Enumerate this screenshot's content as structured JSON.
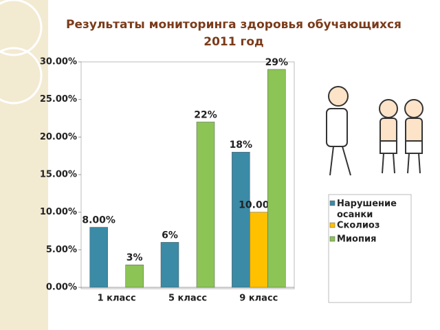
{
  "chart_data": {
    "type": "bar",
    "title": "Результаты мониторинга здоровья обучающихся",
    "subtitle": "2011 год",
    "categories": [
      "1 класс",
      "5 класс",
      "9 класс"
    ],
    "series": [
      {
        "name": "Нарушение осанки",
        "color": "#3b8aa6",
        "values": [
          8,
          6,
          18
        ],
        "value_labels": [
          "8.00%",
          "6%",
          "18%"
        ]
      },
      {
        "name": "Сколиоз",
        "color": "#ffc000",
        "values": [
          0,
          0,
          10
        ],
        "value_labels": [
          null,
          null,
          "10.00%"
        ]
      },
      {
        "name": "Миопия",
        "color": "#8cc456",
        "values": [
          3,
          22,
          29
        ],
        "value_labels": [
          "3%",
          "22%",
          "29%"
        ]
      }
    ],
    "ylim": [
      0,
      30
    ],
    "yticks": [
      {
        "value": 0,
        "label": "0.00%"
      },
      {
        "value": 5,
        "label": "5.00%"
      },
      {
        "value": 10,
        "label": "10.00%"
      },
      {
        "value": 15,
        "label": "15.00%"
      },
      {
        "value": 20,
        "label": "20.00%"
      },
      {
        "value": 25,
        "label": "25.00%"
      },
      {
        "value": 30,
        "label": "30.00%"
      }
    ],
    "grid": false
  }
}
